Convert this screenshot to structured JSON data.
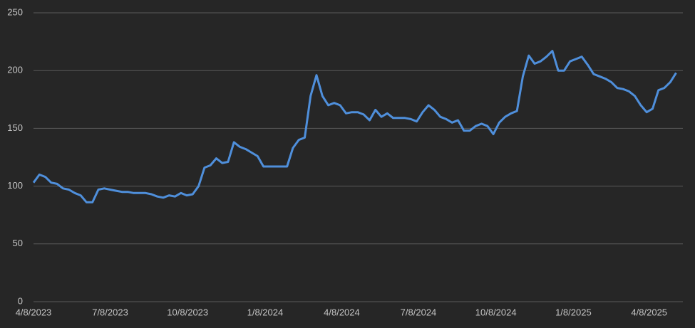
{
  "chart_data": {
    "type": "line",
    "x": [
      "2023-04-08",
      "2023-04-15",
      "2023-04-22",
      "2023-04-29",
      "2023-05-06",
      "2023-05-13",
      "2023-05-20",
      "2023-05-27",
      "2023-06-03",
      "2023-06-10",
      "2023-06-17",
      "2023-06-24",
      "2023-07-01",
      "2023-07-08",
      "2023-07-15",
      "2023-07-22",
      "2023-07-29",
      "2023-08-05",
      "2023-08-12",
      "2023-08-19",
      "2023-08-26",
      "2023-09-02",
      "2023-09-09",
      "2023-09-16",
      "2023-09-23",
      "2023-09-30",
      "2023-10-07",
      "2023-10-14",
      "2023-10-21",
      "2023-10-28",
      "2023-11-04",
      "2023-11-11",
      "2023-11-18",
      "2023-11-25",
      "2023-12-02",
      "2023-12-09",
      "2023-12-16",
      "2023-12-23",
      "2023-12-30",
      "2024-01-06",
      "2024-01-13",
      "2024-01-20",
      "2024-01-27",
      "2024-02-03",
      "2024-02-10",
      "2024-02-17",
      "2024-02-24",
      "2024-03-02",
      "2024-03-09",
      "2024-03-16",
      "2024-03-23",
      "2024-03-30",
      "2024-04-06",
      "2024-04-13",
      "2024-04-20",
      "2024-04-27",
      "2024-05-04",
      "2024-05-11",
      "2024-05-18",
      "2024-05-25",
      "2024-06-01",
      "2024-06-08",
      "2024-06-15",
      "2024-06-22",
      "2024-06-29",
      "2024-07-06",
      "2024-07-13",
      "2024-07-20",
      "2024-07-27",
      "2024-08-03",
      "2024-08-10",
      "2024-08-17",
      "2024-08-24",
      "2024-08-31",
      "2024-09-07",
      "2024-09-14",
      "2024-09-21",
      "2024-09-28",
      "2024-10-05",
      "2024-10-12",
      "2024-10-19",
      "2024-10-26",
      "2024-11-02",
      "2024-11-09",
      "2024-11-16",
      "2024-11-23",
      "2024-11-30",
      "2024-12-07",
      "2024-12-14",
      "2024-12-21",
      "2024-12-28",
      "2025-01-04",
      "2025-01-11",
      "2025-01-18",
      "2025-01-25",
      "2025-02-01",
      "2025-02-08",
      "2025-02-15",
      "2025-02-22",
      "2025-03-01",
      "2025-03-08",
      "2025-03-15",
      "2025-03-22",
      "2025-03-29",
      "2025-04-05",
      "2025-04-12",
      "2025-04-19",
      "2025-04-26",
      "2025-05-03",
      "2025-05-10"
    ],
    "series": [
      {
        "color": "#4f8fdb",
        "values": [
          103,
          110,
          108,
          103,
          102,
          98,
          97,
          94,
          92,
          86,
          86,
          97,
          98,
          97,
          96,
          95,
          95,
          94,
          94,
          94,
          93,
          91,
          90,
          92,
          91,
          94,
          92,
          93,
          100,
          116,
          118,
          124,
          120,
          121,
          138,
          134,
          132,
          129,
          126,
          117,
          117,
          117,
          117,
          117,
          133,
          140,
          142,
          178,
          196,
          178,
          170,
          172,
          170,
          163,
          164,
          164,
          162,
          157,
          166,
          160,
          163,
          159,
          159,
          159,
          158,
          156,
          164,
          170,
          166,
          160,
          158,
          155,
          157,
          148,
          148,
          152,
          154,
          152,
          145,
          155,
          160,
          163,
          165,
          195,
          213,
          206,
          208,
          212,
          217,
          200,
          200,
          208,
          210,
          212,
          205,
          197,
          195,
          193,
          190,
          185,
          184,
          182,
          178,
          170,
          164,
          167,
          183,
          185,
          190,
          198
        ]
      }
    ],
    "xlim": [
      "2023-04-08",
      "2025-05-18"
    ],
    "xticks": [
      {
        "value": "2023-04-08",
        "label": "4/8/2023"
      },
      {
        "value": "2023-07-08",
        "label": "7/8/2023"
      },
      {
        "value": "2023-10-08",
        "label": "10/8/2023"
      },
      {
        "value": "2024-01-08",
        "label": "1/8/2024"
      },
      {
        "value": "2024-04-08",
        "label": "4/8/2024"
      },
      {
        "value": "2024-07-08",
        "label": "7/8/2024"
      },
      {
        "value": "2024-10-08",
        "label": "10/8/2024"
      },
      {
        "value": "2025-01-08",
        "label": "1/8/2025"
      },
      {
        "value": "2025-04-08",
        "label": "4/8/2025"
      }
    ],
    "ylim": [
      0,
      250
    ],
    "yticks": [
      0,
      50,
      100,
      150,
      200,
      250
    ],
    "grid": true
  }
}
